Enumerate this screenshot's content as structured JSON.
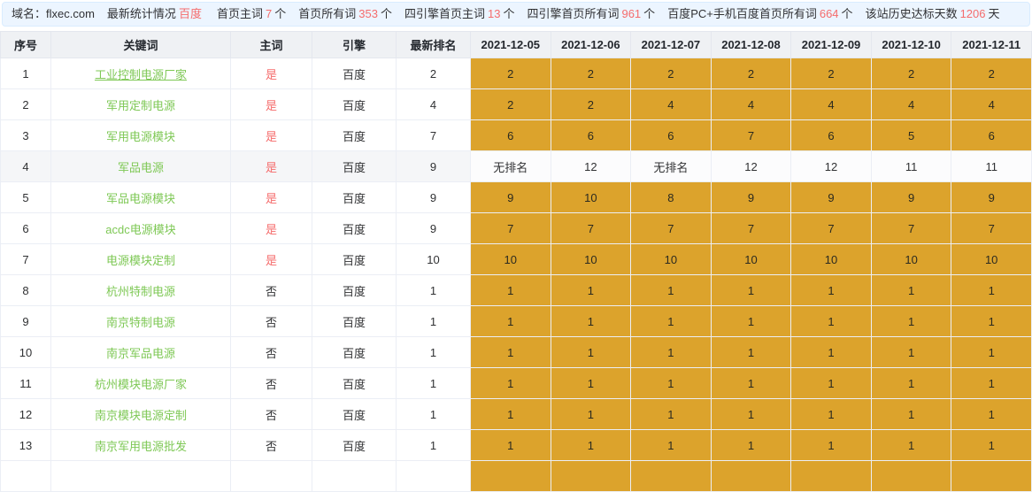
{
  "colors": {
    "orange": "#dca32c",
    "green": "#7ec855",
    "red": "#f56c6c"
  },
  "info_bar": {
    "domain_label": "域名：",
    "domain": "flxec.com",
    "stats_label": "最新统计情况",
    "engine": "百度",
    "items": [
      {
        "label": "首页主词",
        "value": "7",
        "unit": "个"
      },
      {
        "label": "首页所有词",
        "value": "353",
        "unit": "个"
      },
      {
        "label": "四引擎首页主词",
        "value": "13",
        "unit": "个"
      },
      {
        "label": "四引擎首页所有词",
        "value": "961",
        "unit": "个"
      },
      {
        "label": "百度PC+手机百度首页所有词",
        "value": "664",
        "unit": "个"
      },
      {
        "label": "该站历史达标天数",
        "value": "1206",
        "unit": "天"
      }
    ]
  },
  "table": {
    "columns": [
      "序号",
      "关键词",
      "主词",
      "引擎",
      "最新排名",
      "2021-12-05",
      "2021-12-06",
      "2021-12-07",
      "2021-12-08",
      "2021-12-09",
      "2021-12-10",
      "2021-12-11"
    ],
    "rows": [
      {
        "index": "1",
        "keyword": "工业控制电源厂家",
        "main": "是",
        "engine": "百度",
        "latest": "2",
        "ranks": [
          "2",
          "2",
          "2",
          "2",
          "2",
          "2",
          "2"
        ],
        "ranks_highlighted": true,
        "hover": false,
        "keyword_underline": true
      },
      {
        "index": "2",
        "keyword": "军用定制电源",
        "main": "是",
        "engine": "百度",
        "latest": "4",
        "ranks": [
          "2",
          "2",
          "4",
          "4",
          "4",
          "4",
          "4"
        ],
        "ranks_highlighted": true,
        "hover": false,
        "keyword_underline": false
      },
      {
        "index": "3",
        "keyword": "军用电源模块",
        "main": "是",
        "engine": "百度",
        "latest": "7",
        "ranks": [
          "6",
          "6",
          "6",
          "7",
          "6",
          "5",
          "6"
        ],
        "ranks_highlighted": true,
        "hover": false,
        "keyword_underline": false
      },
      {
        "index": "4",
        "keyword": "军品电源",
        "main": "是",
        "engine": "百度",
        "latest": "9",
        "ranks": [
          "无排名",
          "12",
          "无排名",
          "12",
          "12",
          "11",
          "11"
        ],
        "ranks_highlighted": false,
        "hover": true,
        "keyword_underline": false
      },
      {
        "index": "5",
        "keyword": "军品电源模块",
        "main": "是",
        "engine": "百度",
        "latest": "9",
        "ranks": [
          "9",
          "10",
          "8",
          "9",
          "9",
          "9",
          "9"
        ],
        "ranks_highlighted": true,
        "hover": false,
        "keyword_underline": false
      },
      {
        "index": "6",
        "keyword": "acdc电源模块",
        "main": "是",
        "engine": "百度",
        "latest": "9",
        "ranks": [
          "7",
          "7",
          "7",
          "7",
          "7",
          "7",
          "7"
        ],
        "ranks_highlighted": true,
        "hover": false,
        "keyword_underline": false
      },
      {
        "index": "7",
        "keyword": "电源模块定制",
        "main": "是",
        "engine": "百度",
        "latest": "10",
        "ranks": [
          "10",
          "10",
          "10",
          "10",
          "10",
          "10",
          "10"
        ],
        "ranks_highlighted": true,
        "hover": false,
        "keyword_underline": false
      },
      {
        "index": "8",
        "keyword": "杭州特制电源",
        "main": "否",
        "engine": "百度",
        "latest": "1",
        "ranks": [
          "1",
          "1",
          "1",
          "1",
          "1",
          "1",
          "1"
        ],
        "ranks_highlighted": true,
        "hover": false,
        "keyword_underline": false
      },
      {
        "index": "9",
        "keyword": "南京特制电源",
        "main": "否",
        "engine": "百度",
        "latest": "1",
        "ranks": [
          "1",
          "1",
          "1",
          "1",
          "1",
          "1",
          "1"
        ],
        "ranks_highlighted": true,
        "hover": false,
        "keyword_underline": false
      },
      {
        "index": "10",
        "keyword": "南京军品电源",
        "main": "否",
        "engine": "百度",
        "latest": "1",
        "ranks": [
          "1",
          "1",
          "1",
          "1",
          "1",
          "1",
          "1"
        ],
        "ranks_highlighted": true,
        "hover": false,
        "keyword_underline": false
      },
      {
        "index": "11",
        "keyword": "杭州模块电源厂家",
        "main": "否",
        "engine": "百度",
        "latest": "1",
        "ranks": [
          "1",
          "1",
          "1",
          "1",
          "1",
          "1",
          "1"
        ],
        "ranks_highlighted": true,
        "hover": false,
        "keyword_underline": false
      },
      {
        "index": "12",
        "keyword": "南京模块电源定制",
        "main": "否",
        "engine": "百度",
        "latest": "1",
        "ranks": [
          "1",
          "1",
          "1",
          "1",
          "1",
          "1",
          "1"
        ],
        "ranks_highlighted": true,
        "hover": false,
        "keyword_underline": false
      },
      {
        "index": "13",
        "keyword": "南京军用电源批发",
        "main": "否",
        "engine": "百度",
        "latest": "1",
        "ranks": [
          "1",
          "1",
          "1",
          "1",
          "1",
          "1",
          "1"
        ],
        "ranks_highlighted": true,
        "hover": false,
        "keyword_underline": false
      },
      {
        "index": "",
        "keyword": "",
        "main": "",
        "engine": "",
        "latest": "",
        "ranks": [
          "",
          "",
          "",
          "",
          "",
          "",
          ""
        ],
        "ranks_highlighted": true,
        "hover": false,
        "keyword_underline": false
      }
    ]
  }
}
